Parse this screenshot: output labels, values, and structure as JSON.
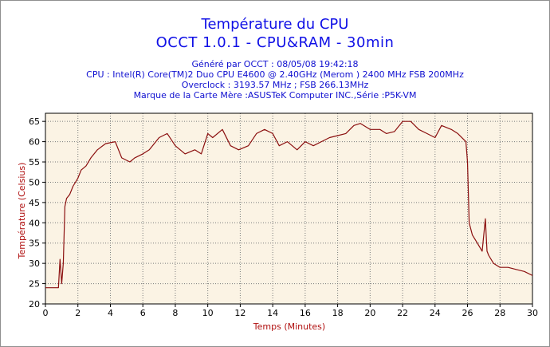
{
  "header": {
    "title_line1": "Température du CPU",
    "title_line2": "OCCT 1.0.1 - CPU&RAM -   30min",
    "generated": "Généré par OCCT : 08/05/08 19:42:18",
    "cpu": "CPU : Intel(R) Core(TM)2 Duo CPU     E4600  @ 2.40GHz (Merom ) 2400 MHz FSB 200MHz",
    "overclock": "Overclock : 3193.57 MHz ; FSB 266.13MHz",
    "motherboard": "Marque de la Carte Mère :ASUSTeK Computer INC.,Série :P5K-VM"
  },
  "colors": {
    "title": "#1010e6",
    "plot_background": "#fbf3e4",
    "line": "#8b0f0f",
    "axis_label": "#b01010",
    "grid": "#7a7a7a"
  },
  "chart_data": {
    "type": "line",
    "xlabel": "Temps (Minutes)",
    "ylabel": "Température (Celsius)",
    "xlim": [
      0,
      30
    ],
    "ylim": [
      20,
      67
    ],
    "xticks": [
      0,
      2,
      4,
      6,
      8,
      10,
      12,
      14,
      16,
      18,
      20,
      22,
      24,
      26,
      28,
      30
    ],
    "yticks": [
      20,
      25,
      30,
      35,
      40,
      45,
      50,
      55,
      60,
      65
    ],
    "grid": true,
    "grid_style": "dotted",
    "series": [
      {
        "x": [
          0,
          0.8,
          0.9,
          1.0,
          1.1,
          1.2,
          1.3,
          1.5,
          1.7,
          2.0,
          2.2,
          2.5,
          2.8,
          3.2,
          3.7,
          4.3,
          4.7,
          5.2,
          5.5,
          6.0,
          6.4,
          7.0,
          7.5,
          8.0,
          8.6,
          9.2,
          9.6,
          10.0,
          10.3,
          10.9,
          11.4,
          11.9,
          12.5,
          13.0,
          13.5,
          14.0,
          14.4,
          14.9,
          15.5,
          16.0,
          16.5,
          17.0,
          17.5,
          18.0,
          18.5,
          19.0,
          19.4,
          20.0,
          20.6,
          21.0,
          21.5,
          22.0,
          22.5,
          23.0,
          23.5,
          24.0,
          24.4,
          25.0,
          25.4,
          25.9,
          26.0,
          26.1,
          26.3,
          26.6,
          26.9,
          27.1,
          27.2,
          27.3,
          27.6,
          28.0,
          28.5,
          29.0,
          29.5,
          30.0
        ],
        "y": [
          24,
          24,
          31,
          25,
          30,
          44,
          46,
          47,
          49,
          51,
          53,
          54,
          56,
          58,
          59.5,
          60,
          56,
          55,
          56,
          57,
          58,
          61,
          62,
          59,
          57,
          58,
          57,
          62,
          61,
          63,
          59,
          58,
          59,
          62,
          63,
          62,
          59,
          60,
          58,
          60,
          59,
          60,
          61,
          61.5,
          62,
          64,
          64.5,
          63,
          63,
          62,
          62.5,
          65,
          65,
          63,
          62,
          61,
          64,
          63,
          62,
          60,
          55,
          40,
          37,
          35,
          33,
          41,
          33,
          32,
          30,
          29,
          29,
          28.5,
          28,
          27
        ]
      }
    ]
  }
}
